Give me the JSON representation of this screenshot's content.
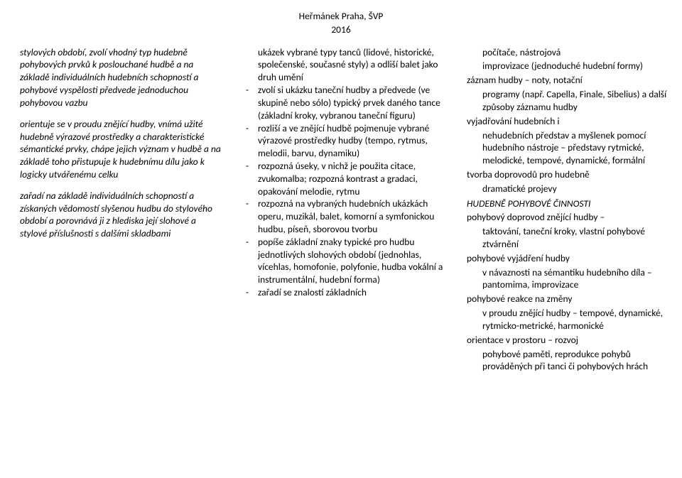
{
  "header": {
    "title": "Heřmánek Praha, ŠVP",
    "year": "2016"
  },
  "col1": {
    "p1": "stylových období, zvolí vhodný typ hudebně pohybových prvků k poslouchané hudbě a na základě individuálních hudebních schopností a pohybové vyspělosti předvede jednoduchou pohybovou vazbu",
    "p2": "orientuje se v proudu znějící hudby, vnímá užité hudebně výrazové prostředky a charakteristické sémantické prvky, chápe jejich význam v hudbě a na základě toho přistupuje k hudebnímu dílu jako k logicky utvářenému celku",
    "p3": "zařadí na základě individuálních schopností a získaných vědomostí slyšenou hudbu do stylového období a porovnává ji z hlediska její slohové a stylové příslušnosti s dalšími skladbami"
  },
  "col2": {
    "intro": "ukázek vybrané typy tanců (lidové, historické, společenské, současné styly) a odliší balet jako druh umění",
    "d1": "zvolí si ukázku taneční hudby a předvede (ve skupině nebo sólo) typický prvek daného tance (základní kroky, vybranou taneční figuru)",
    "d2": "rozliší a ve znějící hudbě pojmenuje vybrané výrazové prostředky hudby (tempo, rytmus, melodii, barvu, dynamiku)",
    "d3": "rozpozná úseky, v nichž je použita citace, zvukomalba; rozpozná kontrast a gradaci, opakování melodie, rytmu",
    "d4": "rozpozná na vybraných hudebních ukázkách operu, muzikál, balet, komorní a symfonickou hudbu, píseň, sborovou tvorbu",
    "d5": "popíše základní znaky typické pro hudbu jednotlivých slohových období (jednohlas, vícehlas, homofonie, polyfonie, hudba vokální a instrumentální, hudební forma)",
    "d6": "zařadí se znalostí základních"
  },
  "col3": {
    "i1a": "počítače, nástrojová",
    "i1b": "improvizace (jednoduché hudební formy)",
    "i2a": "záznam hudby – noty, notační",
    "i2b": "programy (např. Capella, Finale, Sibelius) a další způsoby záznamu hudby",
    "i3a": "vyjadřování hudebních i",
    "i3b": "nehudebních představ a myšlenek pomocí hudebního nástroje – představy rytmické, melodické, tempové, dynamické, formální",
    "i4a": "tvorba doprovodů pro hudebně",
    "i4b": "dramatické projevy",
    "hdr": "HUDEBNĚ POHYBOVÉ ČINNOSTI",
    "i5a": "pohybový doprovod znějící hudby –",
    "i5b": "taktování, taneční kroky, vlastní pohybové ztvárnění",
    "i6a": "pohybové vyjádření hudby",
    "i6b": "v návaznosti na sémantiku hudebního díla – pantomima, improvizace",
    "i7a": "pohybové reakce na změny",
    "i7b": "v proudu znějící hudby – tempové, dynamické, rytmicko-metrické, harmonické",
    "i8a": "orientace v prostoru – rozvoj",
    "i8b": "pohybové paměti, reprodukce pohybů prováděných při tanci či pohybových hrách"
  }
}
